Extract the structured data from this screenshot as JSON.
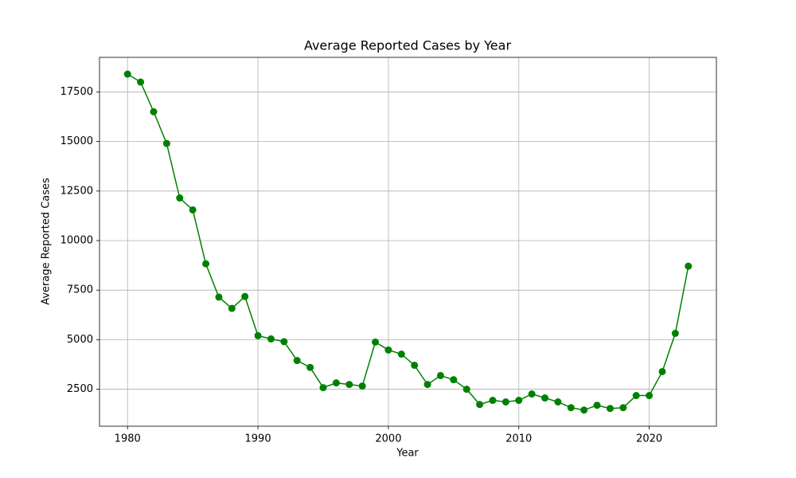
{
  "chart_data": {
    "type": "line",
    "title": "Average Reported Cases by Year",
    "xlabel": "Year",
    "ylabel": "Average Reported Cases",
    "x": [
      1980,
      1981,
      1982,
      1983,
      1984,
      1985,
      1986,
      1987,
      1988,
      1989,
      1990,
      1991,
      1992,
      1993,
      1994,
      1995,
      1996,
      1997,
      1998,
      1999,
      2000,
      2001,
      2002,
      2003,
      2004,
      2005,
      2006,
      2007,
      2008,
      2009,
      2010,
      2011,
      2012,
      2013,
      2014,
      2015,
      2016,
      2017,
      2018,
      2019,
      2020,
      2021,
      2022,
      2023
    ],
    "values": [
      18400,
      18000,
      16500,
      14900,
      12150,
      11550,
      8830,
      7150,
      6580,
      7180,
      5200,
      5040,
      4900,
      3950,
      3600,
      2580,
      2820,
      2740,
      2660,
      4880,
      4480,
      4270,
      3710,
      2740,
      3190,
      2980,
      2500,
      1730,
      1940,
      1860,
      1940,
      2260,
      2060,
      1860,
      1570,
      1450,
      1690,
      1530,
      1570,
      2180,
      2180,
      3390,
      5320,
      8710
    ],
    "color": "#008000",
    "xlim": [
      1977.85,
      2025.15
    ],
    "xticks": [
      1980,
      1990,
      2000,
      2010,
      2020
    ],
    "ylim": [
      634,
      19246
    ],
    "yticks": [
      2500,
      5000,
      7500,
      10000,
      12500,
      15000,
      17500
    ],
    "grid": true
  }
}
